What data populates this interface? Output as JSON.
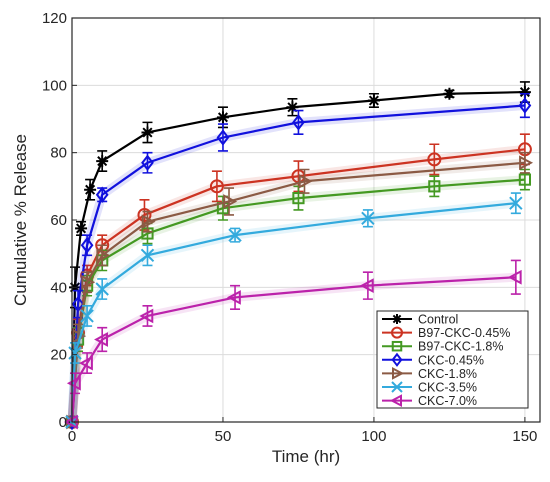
{
  "chart_data": {
    "type": "line",
    "title": "",
    "xlabel": "Time (hr)",
    "ylabel": "Cumulative % Release",
    "xlim": [
      0,
      155
    ],
    "ylim": [
      0,
      120
    ],
    "xticks": [
      0,
      50,
      100,
      150
    ],
    "yticks": [
      0,
      20,
      40,
      60,
      80,
      100,
      120
    ],
    "grid": true,
    "legend_position": "bottom-right",
    "series": [
      {
        "name": "Control",
        "color": "#000000",
        "marker": "asterisk",
        "x": [
          0,
          1,
          3,
          6,
          10,
          25,
          50,
          73,
          100,
          125,
          150
        ],
        "y": [
          0,
          40,
          57.5,
          69,
          77.5,
          86,
          90.5,
          93.5,
          95.5,
          97.5,
          98
        ],
        "err": [
          0,
          6,
          2,
          3,
          3,
          3,
          3,
          2.5,
          2,
          1,
          3
        ]
      },
      {
        "name": "B97-CKC-0.45%",
        "color": "#cc3322",
        "marker": "circle",
        "x": [
          0,
          2,
          5,
          10,
          24,
          48,
          75,
          120,
          150
        ],
        "y": [
          0,
          26.5,
          43.5,
          52.5,
          61.5,
          70,
          73,
          78,
          81
        ],
        "err": [
          0,
          4,
          3,
          3,
          4.5,
          4.5,
          4.5,
          4.5,
          4.5
        ]
      },
      {
        "name": "B97-CKC-1.8%",
        "color": "#449922",
        "marker": "square",
        "x": [
          0,
          2,
          5,
          10,
          25,
          50,
          75,
          120,
          150
        ],
        "y": [
          0,
          24.5,
          40.5,
          48,
          56,
          63.5,
          66.5,
          70,
          72
        ],
        "err": [
          0,
          3.5,
          3,
          3,
          3,
          3.5,
          3.5,
          3,
          3
        ]
      },
      {
        "name": "CKC-0.45%",
        "color": "#1111dd",
        "marker": "diamond",
        "x": [
          0,
          2,
          5,
          10,
          25,
          50,
          75,
          150
        ],
        "y": [
          0,
          35,
          52.5,
          67.5,
          77,
          84.5,
          89,
          94
        ],
        "err": [
          0,
          4,
          3,
          2,
          3,
          4,
          3.5,
          3.5
        ]
      },
      {
        "name": "CKC-1.8%",
        "color": "#8b5a44",
        "marker": "triangle-right",
        "x": [
          0,
          2,
          5,
          10,
          25,
          52,
          77,
          150
        ],
        "y": [
          0,
          25.5,
          41.5,
          49.5,
          59.5,
          65.5,
          71.5,
          77
        ],
        "err": [
          0,
          3.5,
          3,
          3,
          3,
          4,
          3.5,
          3
        ]
      },
      {
        "name": "CKC-3.5%",
        "color": "#33aadd",
        "marker": "x",
        "x": [
          0,
          1,
          5,
          10,
          25,
          54,
          98,
          147
        ],
        "y": [
          0,
          20.5,
          31.5,
          39.5,
          49.5,
          55.5,
          60.5,
          65
        ],
        "err": [
          0,
          3,
          3,
          3,
          3,
          2,
          2.5,
          3
        ]
      },
      {
        "name": "CKC-7.0%",
        "color": "#bb22aa",
        "marker": "triangle-left",
        "x": [
          0,
          1,
          5,
          10,
          25,
          54,
          98,
          147
        ],
        "y": [
          0,
          11.5,
          17.5,
          24.5,
          31.5,
          37,
          40.5,
          43
        ],
        "err": [
          0,
          3,
          3,
          3.5,
          3,
          3.5,
          4,
          5
        ]
      }
    ]
  }
}
